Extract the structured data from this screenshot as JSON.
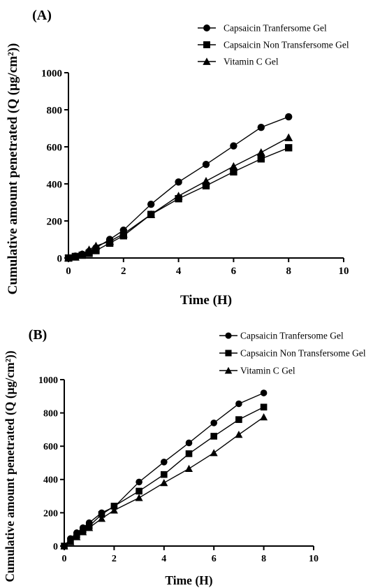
{
  "chart_data": [
    {
      "panel": "(A)",
      "type": "line",
      "xlabel": "Time (H)",
      "ylabel": "Cumulative amount penetrated (Q (µg/cm²))",
      "xlim": [
        0,
        10
      ],
      "ylim": [
        0,
        1000
      ],
      "xticks": [
        0,
        2,
        4,
        6,
        8,
        10
      ],
      "yticks": [
        0,
        200,
        400,
        600,
        800,
        1000
      ],
      "legend_position": "top-right",
      "series": [
        {
          "name": "Capsaicin Tranfersome Gel",
          "marker": "circle",
          "x": [
            0,
            0.25,
            0.5,
            0.75,
            1,
            1.5,
            2,
            3,
            4,
            5,
            6,
            7,
            8
          ],
          "y": [
            0,
            10,
            20,
            35,
            55,
            100,
            150,
            290,
            410,
            505,
            605,
            705,
            762
          ]
        },
        {
          "name": "Capsaicin Non Transfersome Gel",
          "marker": "square",
          "x": [
            0,
            0.25,
            0.5,
            0.75,
            1,
            1.5,
            2,
            3,
            4,
            5,
            6,
            7,
            8
          ],
          "y": [
            0,
            8,
            15,
            25,
            40,
            80,
            120,
            235,
            320,
            390,
            465,
            535,
            595
          ]
        },
        {
          "name": "Vitamin C Gel",
          "marker": "triangle",
          "x": [
            0,
            0.25,
            0.5,
            0.75,
            1,
            1.5,
            2,
            3,
            4,
            5,
            6,
            7,
            8
          ],
          "y": [
            0,
            5,
            20,
            45,
            65,
            90,
            130,
            235,
            335,
            415,
            495,
            570,
            650
          ]
        }
      ]
    },
    {
      "panel": "(B)",
      "type": "line",
      "xlabel": "Time (H)",
      "ylabel": "Cumulative amount penetrated (Q (µg/cm²))",
      "xlim": [
        0,
        10
      ],
      "ylim": [
        0,
        1000
      ],
      "xticks": [
        0,
        2,
        4,
        6,
        8,
        10
      ],
      "yticks": [
        0,
        200,
        400,
        600,
        800,
        1000
      ],
      "legend_position": "top-right",
      "series": [
        {
          "name": "Capsaicin Tranfersome Gel",
          "marker": "circle",
          "x": [
            0,
            0.25,
            0.5,
            0.75,
            1,
            1.5,
            2,
            3,
            4,
            5,
            6,
            7,
            8
          ],
          "y": [
            0,
            45,
            80,
            110,
            140,
            200,
            235,
            385,
            505,
            620,
            740,
            855,
            920
          ]
        },
        {
          "name": "Capsaicin Non Transfersome Gel",
          "marker": "square",
          "x": [
            0,
            0.25,
            0.5,
            0.75,
            1,
            1.5,
            2,
            3,
            4,
            5,
            6,
            7,
            8
          ],
          "y": [
            0,
            30,
            65,
            95,
            120,
            190,
            240,
            330,
            430,
            555,
            660,
            760,
            835
          ]
        },
        {
          "name": "Vitamin C Gel",
          "marker": "triangle",
          "x": [
            0,
            0.25,
            0.5,
            0.75,
            1,
            1.5,
            2,
            3,
            4,
            5,
            6,
            7,
            8
          ],
          "y": [
            0,
            25,
            55,
            85,
            110,
            165,
            215,
            290,
            380,
            465,
            560,
            670,
            775
          ]
        }
      ]
    }
  ]
}
